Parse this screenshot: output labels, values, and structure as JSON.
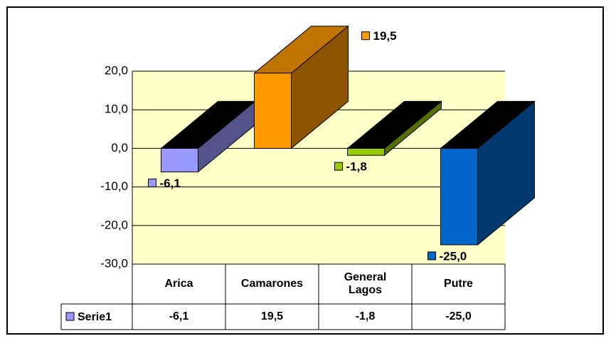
{
  "chart_data": {
    "type": "bar3d",
    "categories": [
      "Arica",
      "Camarones",
      "General Lagos",
      "Putre"
    ],
    "series": [
      {
        "name": "Serie1",
        "color": "#9999ff",
        "colors": [
          "#9999ff",
          "#ff9900",
          "#99cc00",
          "#0066cc"
        ],
        "values": [
          -6.1,
          19.5,
          -1.8,
          -25.0
        ],
        "value_labels": [
          "-6,1",
          "19,5",
          "-1,8",
          "-25,0"
        ]
      }
    ],
    "ylim": [
      -30,
      20
    ],
    "yticks": [
      {
        "value": 20,
        "label": "20,0"
      },
      {
        "value": 10,
        "label": "10,0"
      },
      {
        "value": 0,
        "label": "0,0"
      },
      {
        "value": -10,
        "label": "-10,0"
      },
      {
        "value": -20,
        "label": "-20,0"
      },
      {
        "value": -30,
        "label": "-30,0"
      }
    ],
    "grid": true,
    "data_table": true
  }
}
